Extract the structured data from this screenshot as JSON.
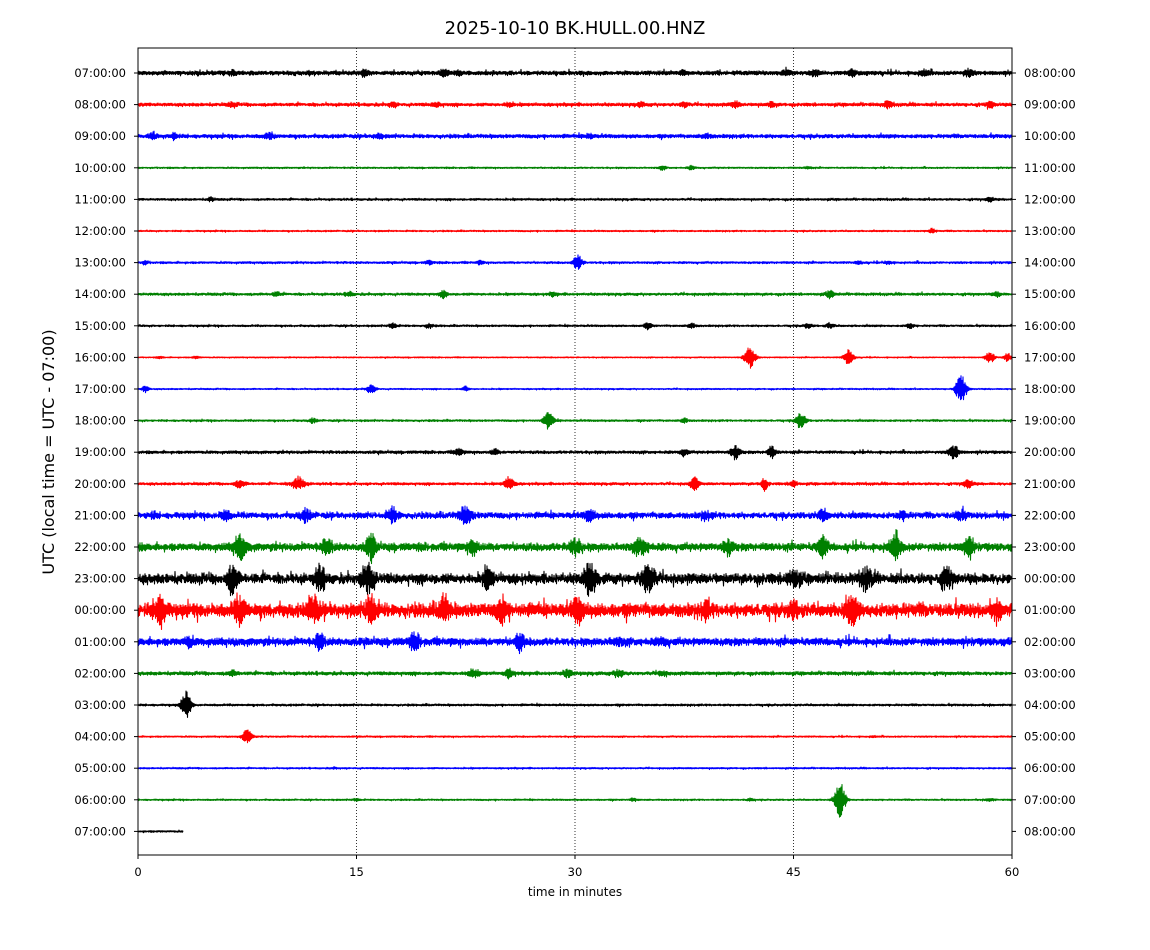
{
  "chart_data": {
    "type": "line",
    "subtype": "helicorder",
    "title": "2025-10-10 BK.HULL.00.HNZ",
    "xlabel": "time in minutes",
    "ylabel": "UTC (local time = UTC - 07:00)",
    "xlim": [
      0,
      60
    ],
    "x_ticks": [
      0,
      15,
      30,
      45,
      60
    ],
    "x_tick_labels": [
      "0",
      "15",
      "30",
      "45",
      "60"
    ],
    "grid": "vertical dotted lines at 15, 30, 45",
    "colors": [
      "#000000",
      "#ff0000",
      "#0000ff",
      "#008000"
    ],
    "left_tick_labels": [
      "07:00:00",
      "08:00:00",
      "09:00:00",
      "10:00:00",
      "11:00:00",
      "12:00:00",
      "13:00:00",
      "14:00:00",
      "15:00:00",
      "16:00:00",
      "17:00:00",
      "18:00:00",
      "19:00:00",
      "20:00:00",
      "21:00:00",
      "22:00:00",
      "23:00:00",
      "00:00:00",
      "01:00:00",
      "02:00:00",
      "03:00:00",
      "04:00:00",
      "05:00:00",
      "06:00:00",
      "07:00:00"
    ],
    "right_tick_labels": [
      "08:00:00",
      "09:00:00",
      "10:00:00",
      "11:00:00",
      "12:00:00",
      "13:00:00",
      "14:00:00",
      "15:00:00",
      "16:00:00",
      "17:00:00",
      "18:00:00",
      "19:00:00",
      "20:00:00",
      "21:00:00",
      "22:00:00",
      "23:00:00",
      "00:00:00",
      "01:00:00",
      "02:00:00",
      "03:00:00",
      "04:00:00",
      "05:00:00",
      "06:00:00",
      "07:00:00",
      "08:00:00"
    ],
    "rows": [
      {
        "base": 2.2,
        "noise": 0.35,
        "end": 60,
        "events": [
          [
            6.5,
            5,
            1
          ],
          [
            15.5,
            5,
            1.2
          ],
          [
            21,
            5,
            1
          ],
          [
            22,
            3,
            0.8
          ],
          [
            37.5,
            5,
            0.8
          ],
          [
            44.5,
            5,
            1
          ],
          [
            46.5,
            5,
            1
          ],
          [
            49,
            5,
            1.3
          ],
          [
            54,
            5,
            1.2
          ],
          [
            57,
            5,
            1.4
          ]
        ]
      },
      {
        "base": 1.7,
        "noise": 0.3,
        "end": 60,
        "events": [
          [
            6.5,
            4,
            0.9
          ],
          [
            17.5,
            4,
            0.9
          ],
          [
            20.5,
            4,
            0.8
          ],
          [
            25.5,
            4,
            0.9
          ],
          [
            34.5,
            4,
            0.8
          ],
          [
            37.5,
            3,
            1.2
          ],
          [
            41,
            4,
            1.2
          ],
          [
            43.5,
            3,
            1
          ],
          [
            51.5,
            4,
            1.4
          ],
          [
            58.5,
            3,
            1.5
          ]
        ]
      },
      {
        "base": 2.0,
        "noise": 0.35,
        "end": 60,
        "events": [
          [
            1,
            3,
            1.5
          ],
          [
            2.5,
            3,
            1.5
          ],
          [
            9,
            5,
            1.2
          ],
          [
            16.5,
            3,
            1.2
          ],
          [
            31,
            4,
            0.8
          ],
          [
            39,
            5,
            0.8
          ]
        ]
      },
      {
        "base": 0.8,
        "noise": 0.15,
        "end": 60,
        "events": [
          [
            36,
            3,
            0.8
          ],
          [
            38,
            3,
            0.8
          ],
          [
            46,
            3,
            0.5
          ]
        ]
      },
      {
        "base": 1.1,
        "noise": 0.2,
        "end": 60,
        "events": [
          [
            5,
            1,
            1
          ],
          [
            58.5,
            3,
            1
          ]
        ]
      },
      {
        "base": 0.8,
        "noise": 0.15,
        "end": 60,
        "events": [
          [
            54.5,
            3,
            1
          ]
        ]
      },
      {
        "base": 1.1,
        "noise": 0.2,
        "end": 60,
        "events": [
          [
            0.5,
            2,
            0.8
          ],
          [
            20,
            3,
            0.8
          ],
          [
            23.5,
            2,
            0.8
          ],
          [
            30.2,
            4,
            3.5
          ],
          [
            49.5,
            2,
            0.8
          ],
          [
            51.5,
            2,
            0.8
          ]
        ]
      },
      {
        "base": 1.3,
        "noise": 0.25,
        "end": 60,
        "events": [
          [
            9.5,
            3,
            1
          ],
          [
            14.5,
            3,
            1
          ],
          [
            21,
            3,
            1.5
          ],
          [
            28.5,
            3,
            0.8
          ],
          [
            47.5,
            4,
            1.5
          ],
          [
            59,
            3,
            1
          ]
        ]
      },
      {
        "base": 1.0,
        "noise": 0.2,
        "end": 60,
        "events": [
          [
            17.5,
            3,
            1.2
          ],
          [
            20,
            3,
            1
          ],
          [
            35,
            4,
            1.1
          ],
          [
            38,
            3,
            1.1
          ],
          [
            46,
            3,
            1
          ],
          [
            47.5,
            3,
            1.2
          ],
          [
            53,
            3,
            1
          ]
        ]
      },
      {
        "base": 0.6,
        "noise": 0.1,
        "end": 60,
        "events": [
          [
            1.5,
            2,
            0.5
          ],
          [
            4,
            3,
            0.5
          ],
          [
            42,
            6,
            5
          ],
          [
            48.8,
            5,
            3.5
          ],
          [
            58.5,
            4,
            2.5
          ],
          [
            59.7,
            2,
            2
          ]
        ]
      },
      {
        "base": 0.7,
        "noise": 0.12,
        "end": 60,
        "events": [
          [
            0.5,
            2,
            1.5
          ],
          [
            16,
            5,
            1.8
          ],
          [
            22.5,
            1,
            1.2
          ],
          [
            56.5,
            6,
            6.5
          ]
        ]
      },
      {
        "base": 1.0,
        "noise": 0.2,
        "end": 60,
        "events": [
          [
            12,
            3,
            1
          ],
          [
            28.2,
            5,
            4
          ],
          [
            37.5,
            2,
            1.2
          ],
          [
            45.5,
            5,
            3.5
          ]
        ]
      },
      {
        "base": 1.5,
        "noise": 0.3,
        "end": 60,
        "events": [
          [
            22,
            3,
            1.8
          ],
          [
            24.5,
            3,
            1.2
          ],
          [
            37.5,
            3,
            1.5
          ],
          [
            41,
            5,
            3
          ],
          [
            43.5,
            3,
            2.5
          ],
          [
            56,
            5,
            3
          ]
        ]
      },
      {
        "base": 1.3,
        "noise": 0.3,
        "end": 60,
        "events": [
          [
            7,
            6,
            1.5
          ],
          [
            11,
            8,
            3
          ],
          [
            25.5,
            5,
            3
          ],
          [
            38.2,
            4,
            3
          ],
          [
            43,
            3,
            2.5
          ],
          [
            45,
            3,
            1.5
          ],
          [
            57,
            5,
            1.8
          ]
        ]
      },
      {
        "base": 3.0,
        "noise": 1.0,
        "end": 60,
        "events": [
          [
            1,
            5,
            1
          ],
          [
            6,
            5,
            2
          ],
          [
            11.5,
            6,
            2.5
          ],
          [
            17.5,
            6,
            3
          ],
          [
            22.5,
            8,
            3.5
          ],
          [
            31,
            5,
            2.5
          ],
          [
            39,
            6,
            1.5
          ],
          [
            47,
            6,
            2
          ],
          [
            52.5,
            5,
            1.5
          ],
          [
            56.5,
            6,
            2
          ]
        ]
      },
      {
        "base": 4.0,
        "noise": 1.0,
        "end": 60,
        "events": [
          [
            7,
            8,
            5
          ],
          [
            13,
            6,
            3
          ],
          [
            16,
            6,
            5
          ],
          [
            23,
            6,
            3
          ],
          [
            30,
            8,
            3
          ],
          [
            34.5,
            10,
            3
          ],
          [
            40.5,
            6,
            3
          ],
          [
            47,
            6,
            4
          ],
          [
            52,
            8,
            5
          ],
          [
            57,
            6,
            4
          ]
        ]
      },
      {
        "base": 5.0,
        "noise": 1.8,
        "end": 60,
        "events": [
          [
            6.5,
            6,
            6
          ],
          [
            12.5,
            6,
            5
          ],
          [
            15.8,
            8,
            7
          ],
          [
            24,
            6,
            4
          ],
          [
            31,
            8,
            6
          ],
          [
            35,
            10,
            6
          ],
          [
            45,
            10,
            3
          ],
          [
            50,
            8,
            4
          ],
          [
            55.5,
            8,
            4
          ]
        ]
      },
      {
        "base": 7.0,
        "noise": 2.0,
        "end": 60,
        "events": [
          [
            1.5,
            8,
            6
          ],
          [
            7,
            8,
            5
          ],
          [
            12,
            6,
            6
          ],
          [
            16,
            6,
            6
          ],
          [
            21,
            6,
            5
          ],
          [
            25,
            6,
            5
          ],
          [
            30.2,
            6,
            5
          ],
          [
            39,
            6,
            3
          ],
          [
            45,
            6,
            2.5
          ],
          [
            49,
            8,
            5
          ],
          [
            59,
            6,
            3
          ]
        ]
      },
      {
        "base": 4.0,
        "noise": 1.0,
        "end": 60,
        "events": [
          [
            3.5,
            4,
            2
          ],
          [
            12.5,
            3,
            4
          ],
          [
            19,
            6,
            3
          ],
          [
            26.2,
            4,
            4
          ],
          [
            33,
            8,
            1
          ],
          [
            36,
            6,
            1
          ]
        ]
      },
      {
        "base": 1.8,
        "noise": 0.3,
        "end": 60,
        "events": [
          [
            6.5,
            5,
            1
          ],
          [
            23,
            6,
            1.8
          ],
          [
            25.5,
            4,
            1.8
          ],
          [
            29.5,
            5,
            1.5
          ],
          [
            33,
            6,
            1.5
          ],
          [
            36,
            4,
            1
          ]
        ]
      },
      {
        "base": 1.1,
        "noise": 0.2,
        "end": 60,
        "events": [
          [
            3.3,
            5,
            6
          ]
        ]
      },
      {
        "base": 0.8,
        "noise": 0.1,
        "end": 60,
        "events": [
          [
            7.5,
            5,
            3.5
          ],
          [
            50.5,
            3,
            0.3
          ]
        ]
      },
      {
        "base": 0.8,
        "noise": 0.1,
        "end": 60,
        "events": [
          [
            13.5,
            3,
            0.3
          ]
        ]
      },
      {
        "base": 0.8,
        "noise": 0.15,
        "end": 60,
        "events": [
          [
            15,
            3,
            0.5
          ],
          [
            34,
            3,
            0.6
          ],
          [
            42,
            3,
            0.6
          ],
          [
            48.2,
            6,
            8
          ],
          [
            58.5,
            4,
            0.6
          ]
        ]
      },
      {
        "base": 1.0,
        "noise": 0.2,
        "end": 3.1,
        "events": []
      }
    ]
  }
}
